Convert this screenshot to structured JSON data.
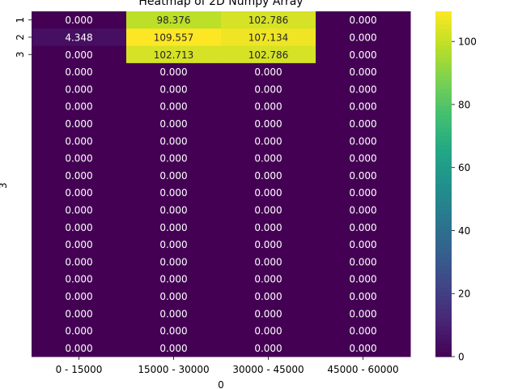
{
  "chart_data": {
    "type": "heatmap",
    "title": "Heatmap of 2D Numpy Array",
    "xlabel": "0",
    "ylabel": "3",
    "x_categories": [
      "0 - 15000",
      "15000 - 30000",
      "30000 - 45000",
      "45000 - 60000"
    ],
    "y_tick_labels": [
      "1",
      "2",
      "3"
    ],
    "values": [
      [
        0.0,
        98.376,
        102.786,
        0.0
      ],
      [
        4.348,
        109.557,
        107.134,
        0.0
      ],
      [
        0.0,
        102.713,
        102.786,
        0.0
      ],
      [
        0.0,
        0.0,
        0.0,
        0.0
      ],
      [
        0.0,
        0.0,
        0.0,
        0.0
      ],
      [
        0.0,
        0.0,
        0.0,
        0.0
      ],
      [
        0.0,
        0.0,
        0.0,
        0.0
      ],
      [
        0.0,
        0.0,
        0.0,
        0.0
      ],
      [
        0.0,
        0.0,
        0.0,
        0.0
      ],
      [
        0.0,
        0.0,
        0.0,
        0.0
      ],
      [
        0.0,
        0.0,
        0.0,
        0.0
      ],
      [
        0.0,
        0.0,
        0.0,
        0.0
      ],
      [
        0.0,
        0.0,
        0.0,
        0.0
      ],
      [
        0.0,
        0.0,
        0.0,
        0.0
      ],
      [
        0.0,
        0.0,
        0.0,
        0.0
      ],
      [
        0.0,
        0.0,
        0.0,
        0.0
      ],
      [
        0.0,
        0.0,
        0.0,
        0.0
      ],
      [
        0.0,
        0.0,
        0.0,
        0.0
      ],
      [
        0.0,
        0.0,
        0.0,
        0.0
      ],
      [
        0.0,
        0.0,
        0.0,
        0.0
      ]
    ],
    "colormap": "viridis",
    "colorbar": {
      "range": [
        0,
        109.557
      ],
      "ticks": [
        0,
        20,
        40,
        60,
        80,
        100
      ]
    },
    "value_format": "3 decimals",
    "grid": false
  }
}
